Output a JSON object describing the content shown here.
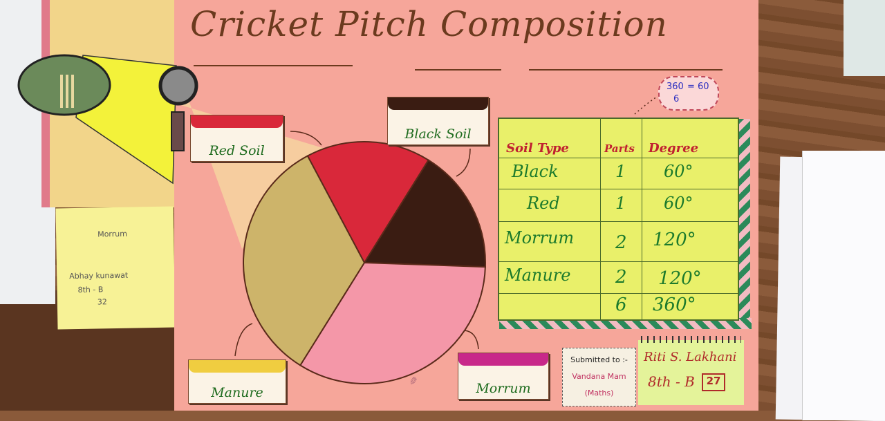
{
  "poster": {
    "title": "Cricket Pitch Composition",
    "ratio": {
      "numerator": "360",
      "denominator": "6",
      "result": "60"
    },
    "labels": {
      "red_soil": "Red Soil",
      "black_soil": "Black Soil",
      "manure": "Manure",
      "morrum": "Morrum"
    },
    "colors": {
      "red_soil": "#d9283a",
      "black_soil": "#3a1c12",
      "manure": "#cdb46a",
      "morrum": "#f497a8",
      "poster": "#f6a69a"
    }
  },
  "chart_data": {
    "type": "pie",
    "slices": [
      {
        "name": "Red Soil",
        "parts": 1,
        "degrees": 60
      },
      {
        "name": "Black Soil",
        "parts": 1,
        "degrees": 60
      },
      {
        "name": "Morrum",
        "parts": 2,
        "degrees": 120
      },
      {
        "name": "Manure",
        "parts": 2,
        "degrees": 120
      }
    ]
  },
  "table": {
    "headers": [
      "Soil Type",
      "Parts",
      "Degree"
    ],
    "rows": [
      [
        "Black",
        "1",
        "60°"
      ],
      [
        "Red",
        "1",
        "60°"
      ],
      [
        "Morrum",
        "2",
        "120°"
      ],
      [
        "Manure",
        "2",
        "120°"
      ]
    ],
    "total": [
      "",
      "6",
      "360°"
    ]
  },
  "submitted": {
    "line1": "Submitted to :-",
    "line2": "Vandana Mam",
    "line3": "(Maths)"
  },
  "student": {
    "name": "Riti S. Lakhani",
    "class": "8th - B",
    "roll": "27"
  },
  "sticky": {
    "line1": "Morrum",
    "line2": "Abhay kunawat",
    "line3": "8th - B",
    "line4": "32"
  }
}
